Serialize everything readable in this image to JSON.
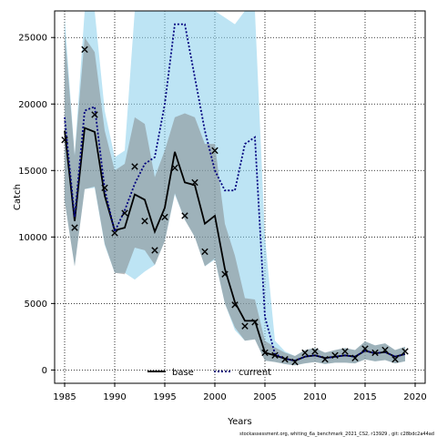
{
  "chart_data": {
    "type": "line",
    "title": "",
    "xlabel": "Years",
    "ylabel": "Catch",
    "xlim": [
      1984.0,
      2021.0
    ],
    "ylim": [
      -1000,
      27000
    ],
    "xticks": [
      1985,
      1990,
      1995,
      2000,
      2005,
      2010,
      2015,
      2020
    ],
    "yticks": [
      0,
      5000,
      10000,
      15000,
      20000,
      25000
    ],
    "grid": true,
    "legend": "bottom-center",
    "footnote": "stockassessment.org, whiting_6a_benchmark_2021_CS2, r13929 , git: c28bdc2a44ad",
    "colors": {
      "base_line": "#000000",
      "base_band": "#808080",
      "current_line": "#00007f",
      "current_band": "#87ceeb",
      "observed": "#000000",
      "grid": "#000000"
    },
    "series": [
      {
        "name": "base",
        "x": [
          1985,
          1986,
          1987,
          1988,
          1989,
          1990,
          1991,
          1992,
          1993,
          1994,
          1995,
          1996,
          1997,
          1998,
          1999,
          2000,
          2001,
          2002,
          2003,
          2004,
          2005,
          2006,
          2007,
          2008,
          2009,
          2010,
          2011,
          2012,
          2013,
          2014,
          2015,
          2016,
          2017,
          2018,
          2019
        ],
        "values": [
          18000,
          11200,
          18200,
          17900,
          13100,
          10500,
          10700,
          13200,
          12800,
          10400,
          12200,
          16400,
          14100,
          13900,
          11000,
          11600,
          7600,
          5100,
          3700,
          3700,
          1300,
          1100,
          850,
          700,
          1000,
          1100,
          900,
          1000,
          1100,
          1000,
          1450,
          1250,
          1350,
          1000,
          1200
        ],
        "lower": [
          12700,
          7800,
          13600,
          13800,
          9500,
          7300,
          7200,
          9200,
          9000,
          7900,
          9700,
          13300,
          11300,
          10000,
          7800,
          8400,
          5000,
          3200,
          2200,
          2300,
          700,
          600,
          450,
          350,
          500,
          600,
          450,
          550,
          550,
          500,
          800,
          650,
          750,
          500,
          650
        ],
        "upper": [
          25500,
          16100,
          25000,
          23900,
          18000,
          15000,
          15500,
          19000,
          18500,
          14500,
          16500,
          19000,
          19300,
          19000,
          17000,
          17000,
          11000,
          8600,
          5400,
          5300,
          2200,
          1700,
          1300,
          1050,
          1500,
          1650,
          1300,
          1500,
          1650,
          1500,
          2150,
          1850,
          2000,
          1500,
          1750
        ]
      },
      {
        "name": "current",
        "x": [
          1985,
          1986,
          1987,
          1988,
          1989,
          1990,
          1991,
          1992,
          1993,
          1994,
          1995,
          1996,
          1997,
          1998,
          1999,
          2000,
          2001,
          2002,
          2003,
          2004,
          2005,
          2006,
          2007,
          2008,
          2009,
          2010,
          2011,
          2012,
          2013,
          2014,
          2015,
          2016,
          2017,
          2018,
          2019
        ],
        "values": [
          19000,
          11500,
          19500,
          19800,
          13600,
          10400,
          12000,
          14000,
          15500,
          16000,
          20000,
          26000,
          26000,
          22000,
          18000,
          15000,
          13500,
          13500,
          17000,
          17500,
          4000,
          1200,
          850,
          700,
          1000,
          1100,
          900,
          1000,
          1100,
          1000,
          1450,
          1250,
          1350,
          1000,
          1200
        ],
        "lower": [
          12700,
          7800,
          13600,
          13700,
          9400,
          7300,
          7300,
          6800,
          7400,
          7900,
          9700,
          13200,
          11300,
          10000,
          7800,
          8300,
          5000,
          3000,
          2200,
          2300,
          700,
          600,
          450,
          350,
          500,
          600,
          450,
          550,
          550,
          500,
          800,
          650,
          750,
          500,
          650
        ],
        "upper": [
          26500,
          16200,
          27000,
          27000,
          19500,
          16000,
          16500,
          27000,
          27000,
          27000,
          27000,
          27000,
          27000,
          27000,
          27000,
          27000,
          26500,
          26000,
          27000,
          27000,
          10000,
          2200,
          1400,
          1050,
          1500,
          1650,
          1300,
          1500,
          1650,
          1500,
          2150,
          1850,
          2000,
          1500,
          1750
        ]
      }
    ],
    "observed": {
      "name": "observed catch",
      "marker": "x",
      "x": [
        1985,
        1986,
        1987,
        1988,
        1989,
        1990,
        1991,
        1992,
        1993,
        1994,
        1995,
        1996,
        1997,
        1998,
        1999,
        2000,
        2001,
        2002,
        2003,
        2004,
        2005,
        2006,
        2007,
        2008,
        2009,
        2010,
        2011,
        2012,
        2013,
        2014,
        2015,
        2016,
        2017,
        2018,
        2019
      ],
      "values": [
        17300,
        10700,
        24100,
        19200,
        13700,
        10300,
        11800,
        15300,
        11200,
        9000,
        11500,
        15200,
        11600,
        14100,
        8900,
        16500,
        7200,
        4900,
        3300,
        3600,
        1300,
        1100,
        800,
        600,
        1300,
        1400,
        800,
        1100,
        1400,
        900,
        1600,
        1300,
        1500,
        800,
        1400
      ]
    }
  }
}
